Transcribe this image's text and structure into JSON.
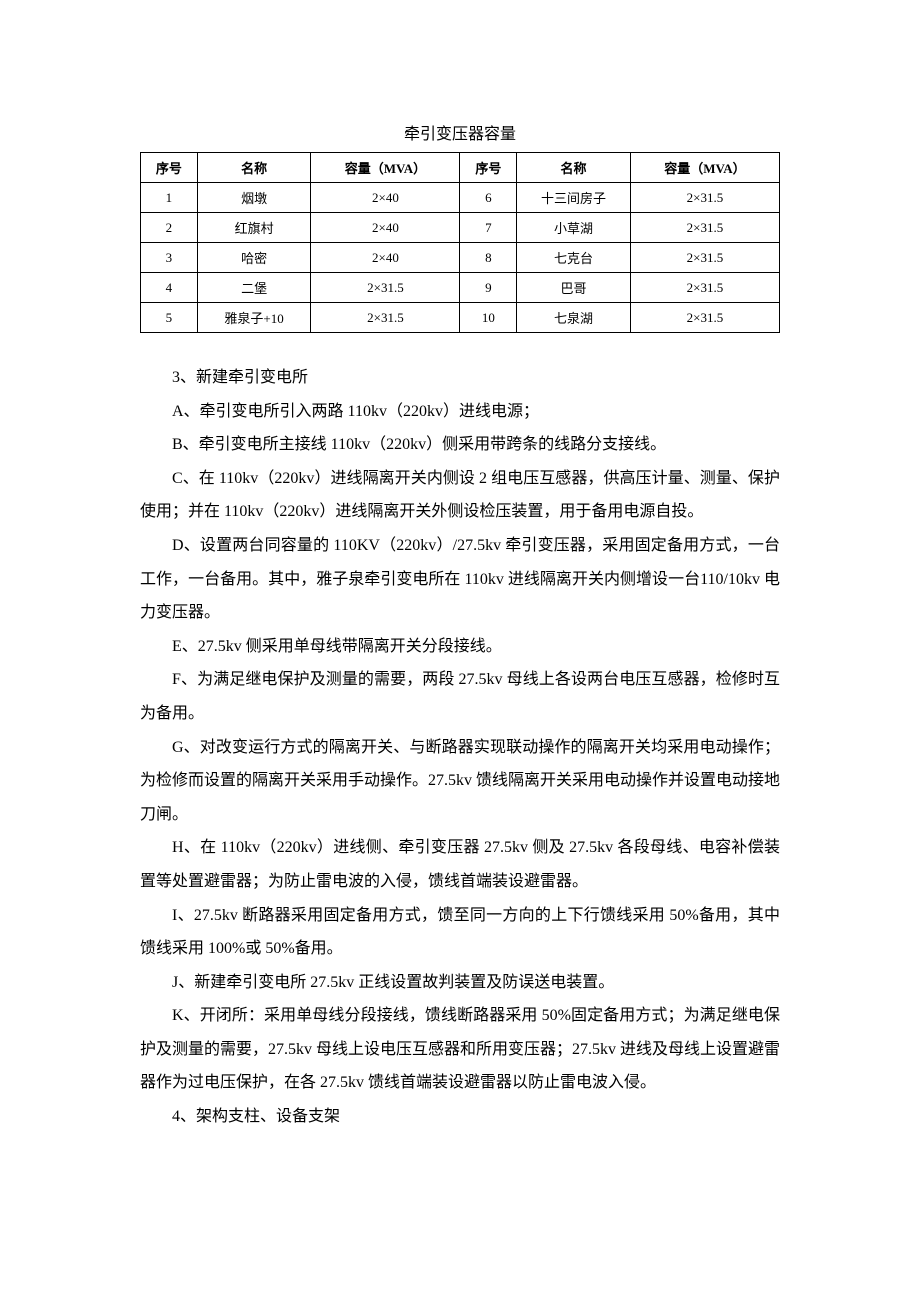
{
  "title": "牵引变压器容量",
  "table": {
    "headers": [
      "序号",
      "名称",
      "容量（MVA）",
      "序号",
      "名称",
      "容量（MVA）"
    ],
    "rows": [
      [
        "1",
        "烟墩",
        "2×40",
        "6",
        "十三间房子",
        "2×31.5"
      ],
      [
        "2",
        "红旗村",
        "2×40",
        "7",
        "小草湖",
        "2×31.5"
      ],
      [
        "3",
        "哈密",
        "2×40",
        "8",
        "七克台",
        "2×31.5"
      ],
      [
        "4",
        "二堡",
        "2×31.5",
        "9",
        "巴哥",
        "2×31.5"
      ],
      [
        "5",
        "雅泉子+10",
        "2×31.5",
        "10",
        "七泉湖",
        "2×31.5"
      ]
    ]
  },
  "paragraphs": [
    "3、新建牵引变电所",
    "A、牵引变电所引入两路 110kv（220kv）进线电源；",
    "B、牵引变电所主接线 110kv（220kv）侧采用带跨条的线路分支接线。",
    "C、在 110kv（220kv）进线隔离开关内侧设 2 组电压互感器，供高压计量、测量、保护使用；并在 110kv（220kv）进线隔离开关外侧设检压装置，用于备用电源自投。",
    "D、设置两台同容量的 110KV（220kv）/27.5kv 牵引变压器，采用固定备用方式，一台工作，一台备用。其中，雅子泉牵引变电所在 110kv 进线隔离开关内侧增设一台110/10kv 电力变压器。",
    "E、27.5kv 侧采用单母线带隔离开关分段接线。",
    "F、为满足继电保护及测量的需要，两段 27.5kv 母线上各设两台电压互感器，检修时互为备用。",
    "G、对改变运行方式的隔离开关、与断路器实现联动操作的隔离开关均采用电动操作；为检修而设置的隔离开关采用手动操作。27.5kv 馈线隔离开关采用电动操作并设置电动接地刀闸。",
    "H、在 110kv（220kv）进线侧、牵引变压器 27.5kv 侧及 27.5kv 各段母线、电容补偿装置等处置避雷器；为防止雷电波的入侵，馈线首端装设避雷器。",
    "I、27.5kv 断路器采用固定备用方式，馈至同一方向的上下行馈线采用 50%备用，其中馈线采用 100%或 50%备用。",
    "J、新建牵引变电所 27.5kv 正线设置故判装置及防误送电装置。",
    "K、开闭所：采用单母线分段接线，馈线断路器采用 50%固定备用方式；为满足继电保护及测量的需要，27.5kv 母线上设电压互感器和所用变压器；27.5kv 进线及母线上设置避雷器作为过电压保护，在各 27.5kv 馈线首端装设避雷器以防止雷电波入侵。",
    "4、架构支柱、设备支架"
  ]
}
